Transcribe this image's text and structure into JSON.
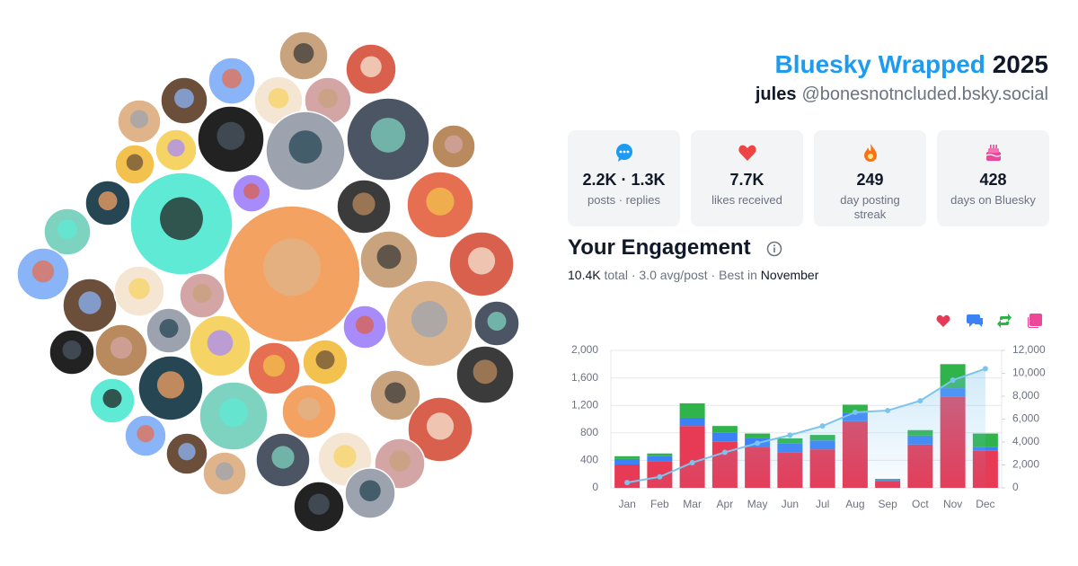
{
  "header": {
    "brand": "Bluesky Wrapped",
    "year": "2025",
    "name": "jules",
    "handle": "@bonesnotncluded.bsky.social"
  },
  "stats": [
    {
      "value": "2.2K · 1.3K",
      "label": "posts · replies"
    },
    {
      "value": "7.7K",
      "label": "likes received"
    },
    {
      "value": "249",
      "label": "day posting streak"
    },
    {
      "value": "428",
      "label": "days on Bluesky"
    }
  ],
  "engagement": {
    "title": "Your Engagement",
    "total": "10.4K",
    "detail": "total · 3.0 avg/post · Best in",
    "best_month": "November"
  },
  "chart_data": {
    "type": "bar",
    "stacked": true,
    "categories": [
      "Jan",
      "Feb",
      "Mar",
      "Apr",
      "May",
      "Jun",
      "Jul",
      "Aug",
      "Sep",
      "Oct",
      "Nov",
      "Dec"
    ],
    "series": [
      {
        "color": "#e63a55",
        "values": [
          340,
          380,
          900,
          670,
          600,
          520,
          560,
          970,
          100,
          630,
          1330,
          540
        ]
      },
      {
        "color": "#3b82f6",
        "values": [
          80,
          80,
          120,
          130,
          120,
          130,
          130,
          120,
          15,
          130,
          120,
          50
        ]
      },
      {
        "color": "#2fb34a",
        "values": [
          40,
          40,
          210,
          100,
          70,
          70,
          80,
          120,
          15,
          80,
          350,
          200
        ]
      },
      {
        "color": "#ec4899",
        "values": [
          0,
          0,
          0,
          0,
          0,
          0,
          0,
          0,
          0,
          0,
          0,
          0
        ]
      },
      {
        "type": "line",
        "axis": "y2",
        "color": "#7cc4ee",
        "values": [
          460,
          960,
          2200,
          3100,
          3900,
          4600,
          5400,
          6600,
          6750,
          7600,
          9400,
          10400
        ]
      }
    ],
    "ylim": [
      0,
      2000
    ],
    "yticks": [
      0,
      400,
      800,
      {
        "value": 1200,
        "label": "1,200"
      },
      {
        "value": 1600,
        "label": "1,600"
      },
      {
        "value": 2000,
        "label": "2,000"
      }
    ],
    "y2lim": [
      0,
      12000
    ],
    "y2ticks": [
      0,
      {
        "value": 2000,
        "label": "2,000"
      },
      {
        "value": 4000,
        "label": "4,000"
      },
      {
        "value": 6000,
        "label": "6,000"
      },
      {
        "value": 8000,
        "label": "8,000"
      },
      {
        "value": 10000,
        "label": "10,000"
      },
      {
        "value": 12000,
        "label": "12,000"
      }
    ],
    "grid": true
  }
}
